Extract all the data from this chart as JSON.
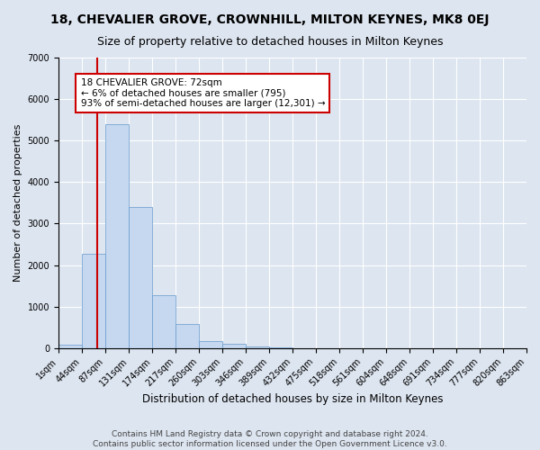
{
  "title": "18, CHEVALIER GROVE, CROWNHILL, MILTON KEYNES, MK8 0EJ",
  "subtitle": "Size of property relative to detached houses in Milton Keynes",
  "xlabel": "Distribution of detached houses by size in Milton Keynes",
  "ylabel": "Number of detached properties",
  "footer_line1": "Contains HM Land Registry data © Crown copyright and database right 2024.",
  "footer_line2": "Contains public sector information licensed under the Open Government Licence v3.0.",
  "annotation_title": "18 CHEVALIER GROVE: 72sqm",
  "annotation_line1": "← 6% of detached houses are smaller (795)",
  "annotation_line2": "93% of semi-detached houses are larger (12,301) →",
  "bar_color": "#c5d8f0",
  "bar_edge_color": "#6699cc",
  "vline_color": "#cc0000",
  "vline_x": 72,
  "annotation_box_color": "#cc0000",
  "bins": [
    1,
    44,
    87,
    131,
    174,
    217,
    260,
    303,
    346,
    389,
    432,
    475,
    518,
    561,
    604,
    648,
    691,
    734,
    777,
    820,
    863
  ],
  "bar_heights": [
    70,
    2270,
    5400,
    3400,
    1280,
    580,
    160,
    95,
    30,
    5,
    2,
    1,
    0,
    0,
    0,
    0,
    0,
    0,
    0,
    0
  ],
  "ylim": [
    0,
    7000
  ],
  "yticks": [
    0,
    1000,
    2000,
    3000,
    4000,
    5000,
    6000,
    7000
  ],
  "background_color": "#dde5f0",
  "plot_bg_color": "#dde5f0",
  "grid_color": "#ffffff",
  "title_fontsize": 10,
  "subtitle_fontsize": 9,
  "xlabel_fontsize": 8.5,
  "ylabel_fontsize": 8,
  "tick_fontsize": 7,
  "footer_fontsize": 6.5,
  "ann_fontsize": 7.5
}
